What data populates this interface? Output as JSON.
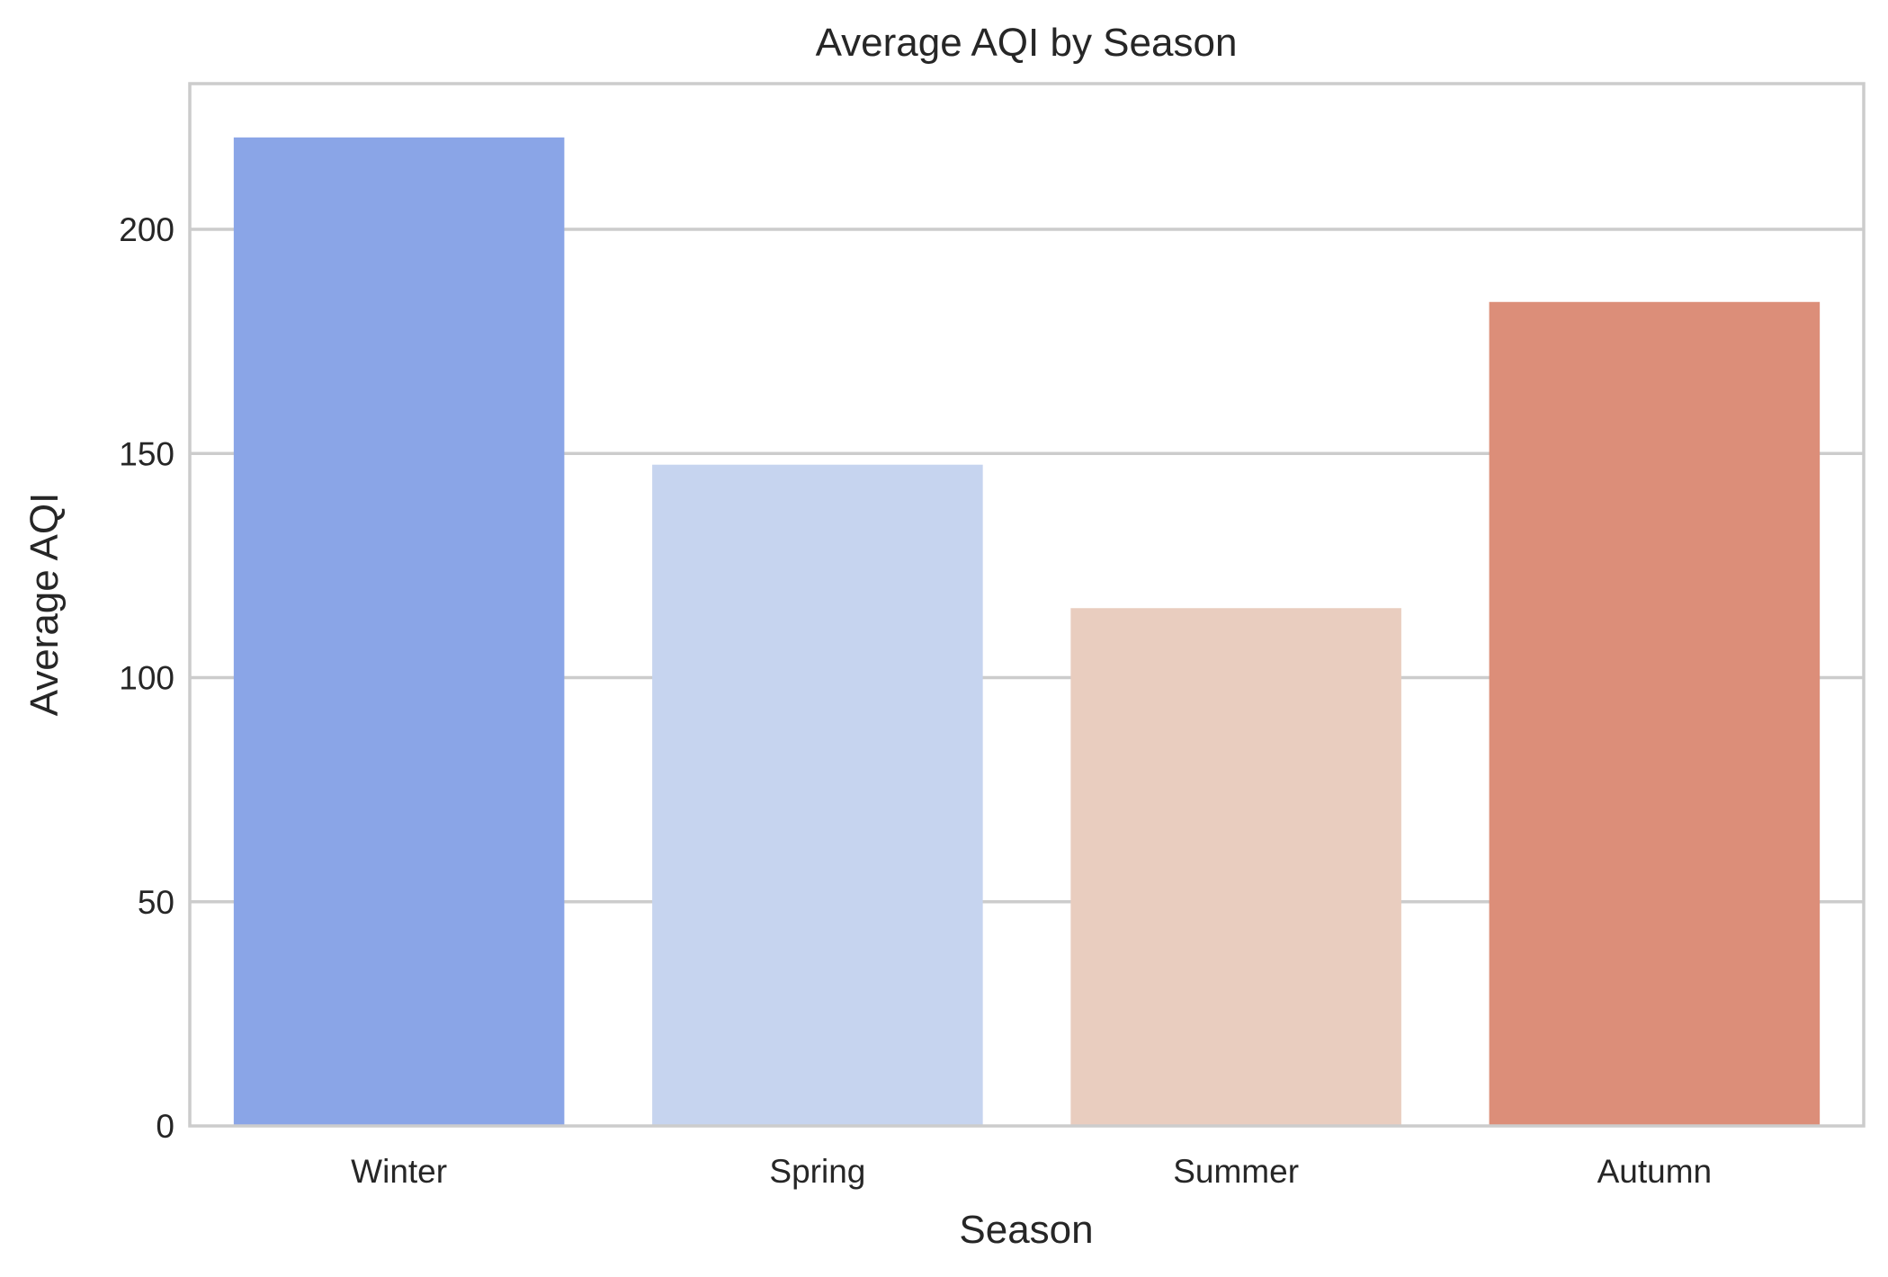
{
  "chart_data": {
    "type": "bar",
    "title": "Average AQI by Season",
    "xlabel": "Season",
    "ylabel": "Average AQI",
    "categories": [
      "Winter",
      "Spring",
      "Summer",
      "Autumn"
    ],
    "values": [
      220.5,
      147.5,
      115.5,
      183.8
    ],
    "colors": [
      "#8aa5e7",
      "#c6d4ef",
      "#e9cdbf",
      "#dc8e79"
    ],
    "ylim": [
      0,
      232.5
    ],
    "yticks": [
      0,
      50,
      100,
      150,
      200
    ],
    "grid": "horizontal"
  }
}
